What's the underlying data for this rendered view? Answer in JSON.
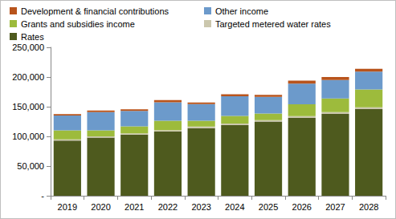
{
  "chart_data": {
    "type": "bar",
    "stacked": true,
    "grid": false,
    "legend": "top",
    "categories": [
      "2019",
      "2020",
      "2021",
      "2022",
      "2023",
      "2024",
      "2025",
      "2026",
      "2027",
      "2028"
    ],
    "series": [
      {
        "name": "Rates",
        "color": "#4e5a1e",
        "values": [
          93000,
          98000,
          103000,
          108000,
          114000,
          119000,
          125000,
          131000,
          138000,
          146000
        ]
      },
      {
        "name": "Targeted metered water rates",
        "color": "#cbc7ad",
        "values": [
          2000,
          2000,
          2000,
          2500,
          2500,
          2500,
          2500,
          3000,
          3000,
          3000
        ]
      },
      {
        "name": "Grants and subsidies income",
        "color": "#9dbb3c",
        "values": [
          15000,
          10000,
          12000,
          16000,
          10000,
          13000,
          11000,
          20000,
          23000,
          30000
        ]
      },
      {
        "name": "Other income",
        "color": "#6c9acb",
        "values": [
          25000,
          31000,
          26000,
          31000,
          28000,
          33000,
          28000,
          35000,
          31000,
          30000
        ]
      },
      {
        "name": "Development & financial contributions",
        "color": "#b8541c",
        "values": [
          2500,
          2500,
          2500,
          3500,
          2500,
          3500,
          3500,
          5000,
          5000,
          5000
        ]
      }
    ],
    "ylim": [
      0,
      250000
    ],
    "yticks": [
      {
        "value": 0,
        "label": "-"
      },
      {
        "value": 50000,
        "label": "50,000"
      },
      {
        "value": 100000,
        "label": "100,000"
      },
      {
        "value": 150000,
        "label": "150,000"
      },
      {
        "value": 200000,
        "label": "200,000"
      },
      {
        "value": 250000,
        "label": "250,000"
      }
    ]
  }
}
